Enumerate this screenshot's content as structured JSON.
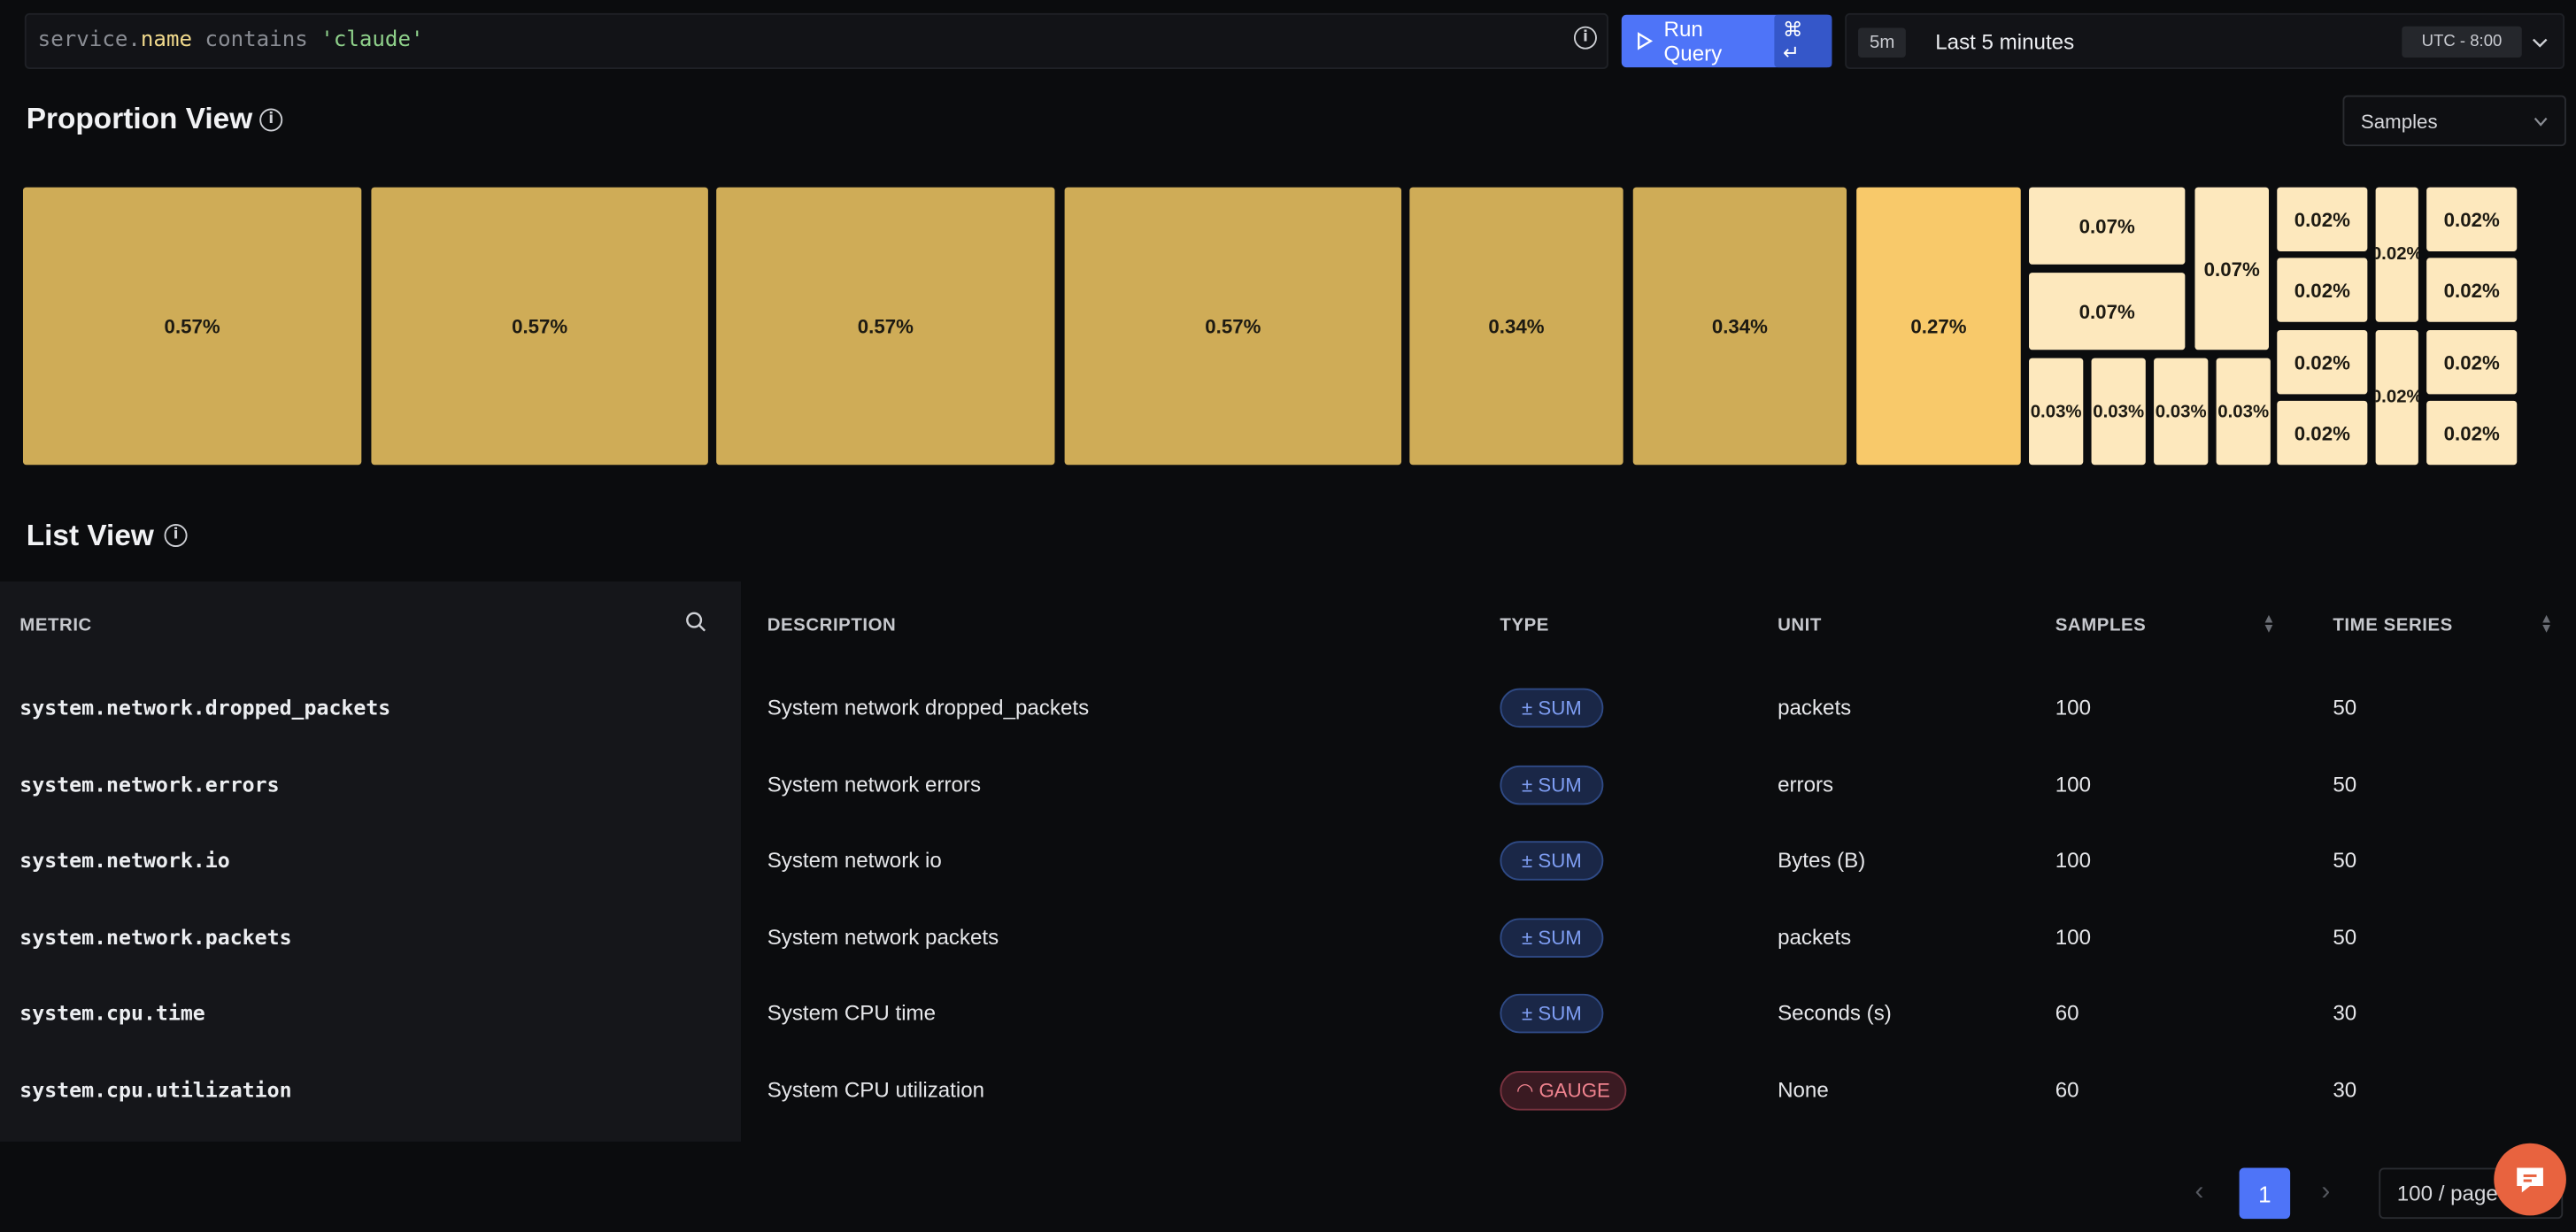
{
  "query": {
    "prefix": "service.",
    "field": "name",
    "operator": " contains ",
    "value": "'claude'"
  },
  "toolbar": {
    "run_label": "Run Query",
    "shortcut": "⌘ ↵"
  },
  "time": {
    "badge": "5m",
    "label": "Last 5 minutes",
    "timezone": "UTC - 8:00"
  },
  "proportion": {
    "title": "Proportion View",
    "select_value": "Samples"
  },
  "treemap": {
    "large": [
      "0.57%",
      "0.57%",
      "0.57%",
      "0.57%",
      "0.34%",
      "0.34%",
      "0.27%"
    ],
    "small": [
      "0.07%",
      "0.07%",
      "0.07%",
      "0.03%",
      "0.03%",
      "0.03%",
      "0.03%",
      "0.02%",
      "0.02%",
      "0.02%",
      "0.02%",
      "0.02%",
      "0.02%",
      "0.02%",
      "0.02%",
      "0.02%",
      "0.02%"
    ]
  },
  "list": {
    "title": "List View",
    "columns": {
      "metric": "METRIC",
      "description": "DESCRIPTION",
      "type": "TYPE",
      "unit": "UNIT",
      "samples": "SAMPLES",
      "series": "TIME SERIES"
    },
    "rows": [
      {
        "metric": "system.network.dropped_packets",
        "description": "System network dropped_packets",
        "type": "± SUM",
        "unit": "packets",
        "samples": "100",
        "series": "50"
      },
      {
        "metric": "system.network.errors",
        "description": "System network errors",
        "type": "± SUM",
        "unit": "errors",
        "samples": "100",
        "series": "50"
      },
      {
        "metric": "system.network.io",
        "description": "System network io",
        "type": "± SUM",
        "unit": "Bytes (B)",
        "samples": "100",
        "series": "50"
      },
      {
        "metric": "system.network.packets",
        "description": "System network packets",
        "type": "± SUM",
        "unit": "packets",
        "samples": "100",
        "series": "50"
      },
      {
        "metric": "system.cpu.time",
        "description": "System CPU time",
        "type": "± SUM",
        "unit": "Seconds (s)",
        "samples": "60",
        "series": "30"
      },
      {
        "metric": "system.cpu.utilization",
        "description": "System CPU utilization",
        "type": "◠ GAUGE",
        "unit": "None",
        "samples": "60",
        "series": "30"
      }
    ]
  },
  "pagination": {
    "current": "1",
    "per_page": "100 / page",
    "prev": "‹",
    "next": "›"
  },
  "colors": {
    "accent": "#4e74f8",
    "tile_dark": "#cfac57",
    "tile_bright": "#f8c96a",
    "tile_light": "#fde8bd",
    "sum": "#7e9df2",
    "gauge": "#f0838f"
  }
}
